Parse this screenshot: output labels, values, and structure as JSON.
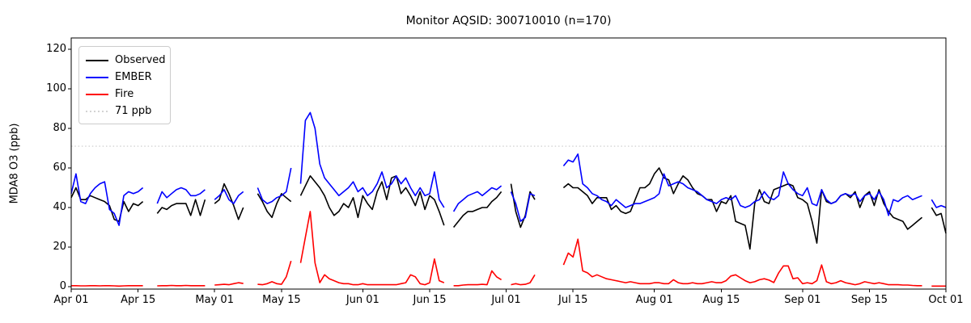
{
  "chart_data": {
    "type": "line",
    "title": "Monitor AQSID: 300710010 (n=170)",
    "xlabel": "",
    "ylabel": "MDA8 O3 (ppb)",
    "grid": false,
    "legend_position": "upper-left",
    "ylim": [
      -1.5,
      125.7
    ],
    "yticks": [
      0,
      20,
      40,
      60,
      80,
      100,
      120
    ],
    "x_unit": "days since Apr 01",
    "x_range_days": [
      0,
      183
    ],
    "xticks": [
      {
        "day": 0,
        "label": "Apr 01"
      },
      {
        "day": 14,
        "label": "Apr 15"
      },
      {
        "day": 30,
        "label": "May 01"
      },
      {
        "day": 44,
        "label": "May 15"
      },
      {
        "day": 61,
        "label": "Jun 01"
      },
      {
        "day": 75,
        "label": "Jun 15"
      },
      {
        "day": 91,
        "label": "Jul 01"
      },
      {
        "day": 105,
        "label": "Jul 15"
      },
      {
        "day": 122,
        "label": "Aug 01"
      },
      {
        "day": 136,
        "label": "Aug 15"
      },
      {
        "day": 153,
        "label": "Sep 01"
      },
      {
        "day": 167,
        "label": "Sep 15"
      },
      {
        "day": 183,
        "label": "Oct 01"
      }
    ],
    "threshold": {
      "value": 71,
      "label": "71 ppb",
      "color": "#d3d3d3",
      "style": "dotted"
    },
    "series": [
      {
        "name": "Observed",
        "color": "#000000",
        "values": [
          45,
          50,
          44,
          44,
          46,
          45,
          44,
          43,
          41,
          34,
          33,
          43,
          38,
          42,
          41,
          43,
          null,
          null,
          37,
          40,
          39,
          41,
          42,
          42,
          42,
          36,
          44,
          36,
          44,
          null,
          42,
          44,
          52,
          47,
          41,
          34,
          40,
          null,
          null,
          47,
          43,
          38,
          35,
          42,
          47,
          45,
          43,
          null,
          46,
          51,
          56,
          53,
          50,
          46,
          40,
          36,
          38,
          42,
          40,
          45,
          35,
          46,
          42,
          39,
          48,
          53,
          44,
          55,
          56,
          47,
          50,
          46,
          41,
          48,
          39,
          46,
          44,
          38,
          31,
          null,
          30,
          33,
          36,
          38,
          38,
          39,
          40,
          40,
          43,
          45,
          48,
          null,
          52,
          38,
          30,
          36,
          48,
          44,
          null,
          null,
          null,
          null,
          null,
          50,
          52,
          50,
          50,
          48,
          46,
          42,
          45,
          45,
          45,
          39,
          41,
          38,
          37,
          38,
          44,
          50,
          50,
          52,
          57,
          60,
          55,
          54,
          47,
          52,
          56,
          54,
          50,
          47,
          46,
          44,
          44,
          38,
          43,
          42,
          46,
          33,
          32,
          31,
          19,
          42,
          49,
          43,
          42,
          49,
          50,
          51,
          52,
          51,
          45,
          44,
          42,
          33,
          22,
          49,
          43,
          42,
          43,
          46,
          47,
          45,
          48,
          40,
          46,
          48,
          41,
          49,
          42,
          38,
          35,
          34,
          33,
          29,
          31,
          33,
          35,
          null,
          40,
          36,
          37,
          27
        ]
      },
      {
        "name": "EMBER",
        "color": "#0000ff",
        "values": [
          47,
          57,
          43,
          42,
          47,
          50,
          52,
          53,
          39,
          37,
          31,
          46,
          48,
          47,
          48,
          50,
          null,
          null,
          42,
          48,
          45,
          47,
          49,
          50,
          49,
          46,
          46,
          47,
          49,
          null,
          44,
          46,
          49,
          44,
          42,
          46,
          48,
          null,
          null,
          50,
          44,
          42,
          43,
          45,
          46,
          48,
          60,
          null,
          52,
          84,
          88,
          80,
          62,
          55,
          52,
          49,
          46,
          48,
          50,
          53,
          48,
          50,
          46,
          48,
          52,
          58,
          50,
          52,
          56,
          52,
          55,
          50,
          46,
          50,
          46,
          47,
          58,
          44,
          40,
          null,
          38,
          42,
          44,
          46,
          47,
          48,
          46,
          48,
          50,
          49,
          51,
          null,
          48,
          42,
          33,
          35,
          47,
          46,
          null,
          null,
          null,
          null,
          null,
          61,
          64,
          63,
          67,
          52,
          50,
          47,
          46,
          44,
          43,
          41,
          44,
          42,
          40,
          41,
          42,
          42,
          43,
          44,
          45,
          47,
          57,
          51,
          52,
          53,
          52,
          50,
          49,
          48,
          46,
          44,
          43,
          42,
          44,
          45,
          44,
          46,
          41,
          40,
          41,
          43,
          44,
          48,
          45,
          44,
          46,
          58,
          52,
          49,
          47,
          46,
          50,
          42,
          41,
          49,
          44,
          42,
          43,
          46,
          47,
          46,
          47,
          43,
          46,
          47,
          44,
          48,
          44,
          36,
          44,
          43,
          45,
          46,
          44,
          45,
          46,
          null,
          44,
          40,
          41,
          40
        ]
      },
      {
        "name": "Fire",
        "color": "#ff0000",
        "values": [
          0.5,
          0.5,
          0.4,
          0.4,
          0.5,
          0.5,
          0.4,
          0.5,
          0.5,
          0.4,
          0.3,
          0.4,
          0.5,
          0.5,
          0.5,
          0.5,
          null,
          null,
          0.4,
          0.5,
          0.5,
          0.6,
          0.5,
          0.5,
          0.6,
          0.5,
          0.5,
          0.5,
          0.5,
          null,
          0.8,
          1.0,
          1.2,
          1.0,
          1.5,
          2.0,
          1.6,
          null,
          null,
          1.2,
          1.0,
          1.5,
          2.5,
          1.5,
          1.2,
          5.0,
          13.0,
          null,
          12.0,
          25.0,
          38.0,
          12.0,
          2.0,
          6.0,
          4.0,
          3.0,
          2.0,
          1.5,
          1.5,
          1.0,
          1.0,
          1.5,
          1.0,
          1.0,
          1.0,
          1.0,
          1.0,
          1.0,
          1.0,
          1.5,
          2.0,
          6.0,
          5.0,
          1.5,
          1.0,
          2.0,
          14.0,
          3.0,
          2.0,
          null,
          0.5,
          0.5,
          0.8,
          1.0,
          1.0,
          1.0,
          1.2,
          1.0,
          8.0,
          5.0,
          3.5,
          null,
          1.0,
          1.5,
          1.0,
          1.2,
          2.0,
          6.0,
          null,
          null,
          null,
          null,
          null,
          11.0,
          17.0,
          15.0,
          24.0,
          8.0,
          7.0,
          5.0,
          6.0,
          5.0,
          4.0,
          3.5,
          3.0,
          2.5,
          2.0,
          2.5,
          2.0,
          1.5,
          1.5,
          1.5,
          2.0,
          2.0,
          1.5,
          1.5,
          3.5,
          2.0,
          1.5,
          1.5,
          2.0,
          1.5,
          1.5,
          2.0,
          2.5,
          2.0,
          2.0,
          3.0,
          5.4,
          6.0,
          4.5,
          3.0,
          2.0,
          2.5,
          3.5,
          4.0,
          3.3,
          2.1,
          7.0,
          10.5,
          10.5,
          4.0,
          4.5,
          1.5,
          2.0,
          1.5,
          3.0,
          11.0,
          2.5,
          1.5,
          2.0,
          3.0,
          2.0,
          1.5,
          1.0,
          1.5,
          2.5,
          2.0,
          1.5,
          2.0,
          1.5,
          1.0,
          1.0,
          1.0,
          0.8,
          0.8,
          0.6,
          0.5,
          0.5,
          null,
          0.3,
          0.3,
          0.3,
          0.3
        ]
      }
    ]
  }
}
